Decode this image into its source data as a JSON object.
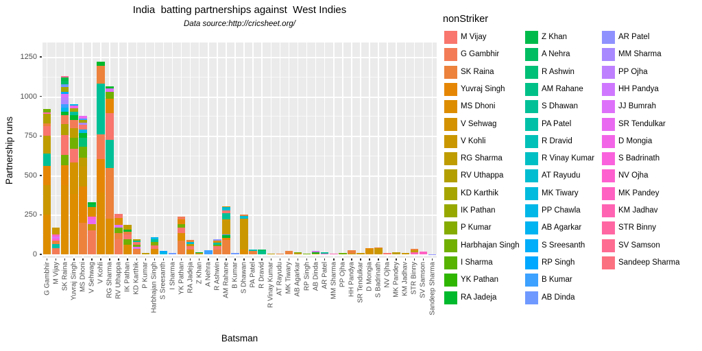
{
  "title": "India  batting partnerships against  West Indies",
  "subtitle": "Data source:http://cricsheet.org/",
  "colors": {
    "panel_bg": "#EBEBEB",
    "grid": "#FFFFFF",
    "axis_text": "#4D4D4D",
    "tick_mark": "#333333",
    "text": "#000000",
    "background": "#FFFFFF"
  },
  "chart_data": {
    "type": "bar",
    "variant": "stacked",
    "title": "India  batting partnerships against  West Indies",
    "subtitle": "Data source:http://cricsheet.org/",
    "xlabel": "Batsman",
    "ylabel": "Partnership runs",
    "y_ticks": [
      0,
      250,
      500,
      750,
      1000,
      1250
    ],
    "ylim": [
      0,
      1345
    ],
    "grid": true,
    "legend_title": "nonStriker",
    "legend_position": "right",
    "palette": "ggplot2-hcl-46",
    "nonStrikers": [
      "M Vijay",
      "G Gambhir",
      "SK Raina",
      "Yuvraj Singh",
      "MS Dhoni",
      "V Sehwag",
      "V Kohli",
      "RG Sharma",
      "RV Uthappa",
      "KD Karthik",
      "IK Pathan",
      "P Kumar",
      "Harbhajan Singh",
      "I Sharma",
      "YK Pathan",
      "RA Jadeja",
      "Z Khan",
      "A Nehra",
      "R Ashwin",
      "AM Rahane",
      "S Dhawan",
      "PA Patel",
      "R Dravid",
      "R Vinay Kumar",
      "AT Rayudu",
      "MK Tiwary",
      "PP Chawla",
      "AB Agarkar",
      "S Sreesanth",
      "RP Singh",
      "B Kumar",
      "AB Dinda",
      "AR Patel",
      "MM Sharma",
      "PP Ojha",
      "HH Pandya",
      "JJ Bumrah",
      "SR Tendulkar",
      "D Mongia",
      "S Badrinath",
      "NV Ojha",
      "MK Pandey",
      "KM Jadhav",
      "STR Binny",
      "SV Samson",
      "Sandeep Sharma"
    ],
    "bars": [
      {
        "batsman": "G Gambhir",
        "segments": [
          [
            "MS Dhoni",
            250
          ],
          [
            "V Kohli",
            190
          ],
          [
            "Yuvraj Singh",
            120
          ],
          [
            "S Dhawan",
            80
          ],
          [
            "RG Sharma",
            110
          ],
          [
            "M Vijay",
            60
          ],
          [
            "SK Raina",
            20
          ],
          [
            "RV Uthappa",
            60
          ],
          [
            "KM Jadhav",
            10
          ],
          [
            "Harbhajan Singh",
            20
          ]
        ]
      },
      {
        "batsman": "M Vijay",
        "segments": [
          [
            "G Gambhir",
            40
          ],
          [
            "PA Patel",
            25
          ],
          [
            "SK Raina",
            20
          ],
          [
            "NV Ojha",
            15
          ],
          [
            "JJ Bumrah",
            15
          ],
          [
            "MK Pandey",
            10
          ],
          [
            "V Kohli",
            45
          ]
        ]
      },
      {
        "batsman": "SK Raina",
        "segments": [
          [
            "MS Dhoni",
            440
          ],
          [
            "Yuvraj Singh",
            125
          ],
          [
            "Harbhajan Singh",
            65
          ],
          [
            "M Vijay",
            125
          ],
          [
            "RV Uthappa",
            70
          ],
          [
            "G Gambhir",
            55
          ],
          [
            "RA Jadeja",
            25
          ],
          [
            "PP Chawla",
            25
          ],
          [
            "B Kumar",
            20
          ],
          [
            "MM Sharma",
            25
          ],
          [
            "PP Ojha",
            20
          ],
          [
            "JJ Bumrah",
            20
          ],
          [
            "RP Singh",
            15
          ],
          [
            "KD Karthik",
            30
          ],
          [
            "AB Dinda",
            15
          ],
          [
            "A Nehra",
            25
          ],
          [
            "Z Khan",
            20
          ],
          [
            "SV Samson",
            10
          ]
        ]
      },
      {
        "batsman": "Yuvraj Singh",
        "segments": [
          [
            "MS Dhoni",
            380
          ],
          [
            "V Sehwag",
            200
          ],
          [
            "M Vijay",
            90
          ],
          [
            "Harbhajan Singh",
            70
          ],
          [
            "RG Sharma",
            60
          ],
          [
            "G Gambhir",
            50
          ],
          [
            "RA Jadeja",
            30
          ],
          [
            "S Dhawan",
            25
          ],
          [
            "KD Karthik",
            20
          ],
          [
            "D Mongia",
            15
          ],
          [
            "PP Chawla",
            10
          ]
        ]
      },
      {
        "batsman": "MS Dhoni",
        "segments": [
          [
            "SK Raina",
            200
          ],
          [
            "Yuvraj Singh",
            230
          ],
          [
            "V Kohli",
            125
          ],
          [
            "RG Sharma",
            55
          ],
          [
            "Harbhajan Singh",
            70
          ],
          [
            "R Ashwin",
            60
          ],
          [
            "RA Jadeja",
            30
          ],
          [
            "PP Chawla",
            20
          ],
          [
            "M Vijay",
            30
          ],
          [
            "MM Sharma",
            15
          ],
          [
            "KD Karthik",
            15
          ],
          [
            "B Kumar",
            10
          ],
          [
            "SR Tendulkar",
            15
          ]
        ]
      },
      {
        "batsman": "V Sehwag",
        "segments": [
          [
            "G Gambhir",
            150
          ],
          [
            "V Kohli",
            40
          ],
          [
            "SR Tendulkar",
            30
          ],
          [
            "NV Ojha",
            20
          ],
          [
            "MS Dhoni",
            60
          ],
          [
            "Z Khan",
            15
          ],
          [
            "RA Jadeja",
            15
          ]
        ]
      },
      {
        "batsman": "V Kohli",
        "segments": [
          [
            "MS Dhoni",
            390
          ],
          [
            "Yuvraj Singh",
            215
          ],
          [
            "G Gambhir",
            155
          ],
          [
            "S Dhawan",
            320
          ],
          [
            "SK Raina",
            115
          ],
          [
            "RA Jadeja",
            25
          ]
        ]
      },
      {
        "batsman": "RG Sharma",
        "segments": [
          [
            "MS Dhoni",
            225
          ],
          [
            "SK Raina",
            320
          ],
          [
            "S Dhawan",
            180
          ],
          [
            "M Vijay",
            170
          ],
          [
            "Yuvraj Singh",
            90
          ],
          [
            "Harbhajan Singh",
            45
          ],
          [
            "JJ Bumrah",
            20
          ],
          [
            "RA Jadeja",
            15
          ]
        ]
      },
      {
        "batsman": "RV Uthappa",
        "segments": [
          [
            "G Gambhir",
            95
          ],
          [
            "SK Raina",
            40
          ],
          [
            "Harbhajan Singh",
            35
          ],
          [
            "JJ Bumrah",
            15
          ],
          [
            "MS Dhoni",
            45
          ],
          [
            "M Vijay",
            25
          ]
        ]
      },
      {
        "batsman": "IK Pathan",
        "segments": [
          [
            "MS Dhoni",
            60
          ],
          [
            "Harbhajan Singh",
            35
          ],
          [
            "M Vijay",
            30
          ],
          [
            "SK Raina",
            20
          ],
          [
            "RA Jadeja",
            10
          ],
          [
            "RG Sharma",
            30
          ]
        ]
      },
      {
        "batsman": "KD Karthik",
        "segments": [
          [
            "SK Raina",
            35
          ],
          [
            "JJ Bumrah",
            12
          ],
          [
            "Harbhajan Singh",
            15
          ],
          [
            "M Vijay",
            15
          ],
          [
            "S Dhawan",
            10
          ],
          [
            "RV Uthappa",
            8
          ]
        ]
      },
      {
        "batsman": "P Kumar",
        "segments": [
          [
            "RG Sharma",
            10
          ]
        ]
      },
      {
        "batsman": "Harbhajan Singh",
        "segments": [
          [
            "MS Dhoni",
            35
          ],
          [
            "M Vijay",
            20
          ],
          [
            "P Kumar",
            25
          ],
          [
            "S Dhawan",
            15
          ],
          [
            "PP Chawla",
            15
          ]
        ]
      },
      {
        "batsman": "S Sreesanth",
        "segments": [
          [
            "PP Chawla",
            12
          ],
          [
            "RP Singh",
            8
          ]
        ]
      },
      {
        "batsman": "I Sharma",
        "segments": [
          [
            "AB Dinda",
            8
          ]
        ]
      },
      {
        "batsman": "YK Pathan",
        "segments": [
          [
            "SK Raina",
            85
          ],
          [
            "MS Dhoni",
            50
          ],
          [
            "M Vijay",
            35
          ],
          [
            "Harbhajan Singh",
            20
          ],
          [
            "Yuvraj Singh",
            30
          ],
          [
            "G Gambhir",
            20
          ]
        ]
      },
      {
        "batsman": "RA Jadeja",
        "segments": [
          [
            "MS Dhoni",
            30
          ],
          [
            "M Vijay",
            20
          ],
          [
            "RG Sharma",
            15
          ],
          [
            "AT Rayudu",
            15
          ],
          [
            "SK Raina",
            10
          ]
        ]
      },
      {
        "batsman": "Z Khan",
        "segments": [
          [
            "RG Sharma",
            10
          ],
          [
            "RA Jadeja",
            5
          ]
        ]
      },
      {
        "batsman": "A Nehra",
        "segments": [
          [
            "B Kumar",
            25
          ]
        ]
      },
      {
        "batsman": "R Ashwin",
        "segments": [
          [
            "SK Raina",
            30
          ],
          [
            "M Vijay",
            20
          ],
          [
            "Harbhajan Singh",
            10
          ],
          [
            "S Dhawan",
            15
          ],
          [
            "MS Dhoni",
            10
          ],
          [
            "AR Patel",
            10
          ]
        ]
      },
      {
        "batsman": "AM Rahane",
        "segments": [
          [
            "SK Raina",
            90
          ],
          [
            "Yuvraj Singh",
            15
          ],
          [
            "RA Jadeja",
            15
          ],
          [
            "B Kumar",
            8
          ],
          [
            "V Kohli",
            92
          ],
          [
            "S Dhawan",
            40
          ],
          [
            "M Vijay",
            20
          ],
          [
            "AT Rayudu",
            20
          ],
          [
            "MS Dhoni",
            5
          ]
        ]
      },
      {
        "batsman": "B Kumar",
        "segments": [
          [
            "AB Dinda",
            10
          ]
        ]
      },
      {
        "batsman": "S Dhawan",
        "segments": [
          [
            "MS Dhoni",
            30
          ],
          [
            "V Kohli",
            195
          ],
          [
            "AT Rayudu",
            20
          ],
          [
            "SK Raina",
            5
          ]
        ]
      },
      {
        "batsman": "PA Patel",
        "segments": [
          [
            "SK Raina",
            20
          ],
          [
            "R Dravid",
            12
          ]
        ]
      },
      {
        "batsman": "R Dravid",
        "segments": [
          [
            "AM Rahane",
            20
          ],
          [
            "A Nehra",
            12
          ]
        ]
      },
      {
        "batsman": "R Vinay Kumar",
        "segments": [
          [
            "RG Sharma",
            3
          ]
        ]
      },
      {
        "batsman": "AT Rayudu",
        "segments": [
          [
            "SK Raina",
            5
          ]
        ]
      },
      {
        "batsman": "MK Tiwary",
        "segments": [
          [
            "SK Raina",
            20
          ]
        ]
      },
      {
        "batsman": "AB Agarkar",
        "segments": [
          [
            "RG Sharma",
            10
          ],
          [
            "Harbhajan Singh",
            5
          ]
        ]
      },
      {
        "batsman": "RP Singh",
        "segments": [
          [
            "Harbhajan Singh",
            3
          ]
        ]
      },
      {
        "batsman": "AB Dinda",
        "segments": [
          [
            "RG Sharma",
            6
          ],
          [
            "RA Jadeja",
            5
          ],
          [
            "PP Chawla",
            4
          ],
          [
            "MK Pandey",
            3
          ],
          [
            "MM Sharma",
            2
          ]
        ]
      },
      {
        "batsman": "AR Patel",
        "segments": [
          [
            "MK Pandey",
            6
          ],
          [
            "S Dhawan",
            5
          ],
          [
            "RA Jadeja",
            4
          ]
        ]
      },
      {
        "batsman": "MM Sharma",
        "segments": [
          [
            "KM Jadhav",
            3
          ]
        ]
      },
      {
        "batsman": "PP Ojha",
        "segments": [
          [
            "Harbhajan Singh",
            8
          ]
        ]
      },
      {
        "batsman": "HH Pandya",
        "segments": [
          [
            "RG Sharma",
            5
          ],
          [
            "SK Raina",
            20
          ]
        ]
      },
      {
        "batsman": "SR Tendulkar",
        "segments": [
          [
            "V Kohli",
            8
          ]
        ]
      },
      {
        "batsman": "D Mongia",
        "segments": [
          [
            "V Sehwag",
            30
          ],
          [
            "Yuvraj Singh",
            10
          ]
        ]
      },
      {
        "batsman": "S Badrinath",
        "segments": [
          [
            "V Kohli",
            40
          ],
          [
            "SK Raina",
            5
          ]
        ]
      },
      {
        "batsman": "NV Ojha",
        "segments": [
          [
            "M Vijay",
            8
          ]
        ]
      },
      {
        "batsman": "MK Pandey",
        "segments": [
          [
            "RG Sharma",
            12
          ]
        ]
      },
      {
        "batsman": "KM Jadhav",
        "segments": [
          [
            "V Kohli",
            10
          ]
        ]
      },
      {
        "batsman": "STR Binny",
        "segments": [
          [
            "KM Jadhav",
            15
          ],
          [
            "RG Sharma",
            10
          ],
          [
            "SK Raina",
            10
          ]
        ]
      },
      {
        "batsman": "SV Samson",
        "segments": [
          [
            "MK Pandey",
            18
          ]
        ]
      },
      {
        "batsman": "Sandeep Sharma",
        "segments": [
          [
            "AR Patel",
            2
          ]
        ]
      }
    ]
  }
}
